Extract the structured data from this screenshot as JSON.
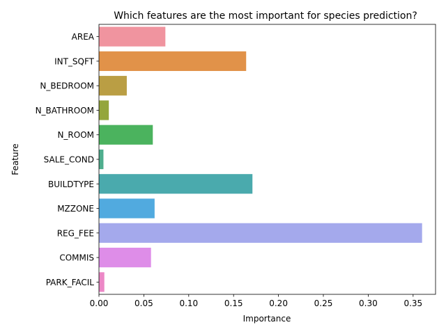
{
  "chart_data": {
    "type": "bar",
    "orientation": "horizontal",
    "title": "Which features are the most important for species prediction?",
    "xlabel": "Importance",
    "ylabel": "Feature",
    "categories": [
      "AREA",
      "INT_SQFT",
      "N_BEDROOM",
      "N_BATHROOM",
      "N_ROOM",
      "SALE_COND",
      "BUILDTYPE",
      "MZZONE",
      "REG_FEE",
      "COMMIS",
      "PARK_FACIL"
    ],
    "values": [
      0.074,
      0.164,
      0.031,
      0.011,
      0.06,
      0.005,
      0.171,
      0.062,
      0.36,
      0.058,
      0.006
    ],
    "colors": [
      "#f0949f",
      "#e19249",
      "#ba9e44",
      "#94a63c",
      "#4bb35e",
      "#4fae8e",
      "#4aaaad",
      "#51aadf",
      "#a4a9ec",
      "#de8de8",
      "#ec88c6"
    ],
    "xlim": [
      0,
      0.375
    ],
    "xticks": [
      0.0,
      0.05,
      0.1,
      0.15,
      0.2,
      0.25,
      0.3,
      0.35
    ],
    "xtick_labels": [
      "0.00",
      "0.05",
      "0.10",
      "0.15",
      "0.20",
      "0.25",
      "0.30",
      "0.35"
    ],
    "grid": false,
    "legend": "none"
  }
}
